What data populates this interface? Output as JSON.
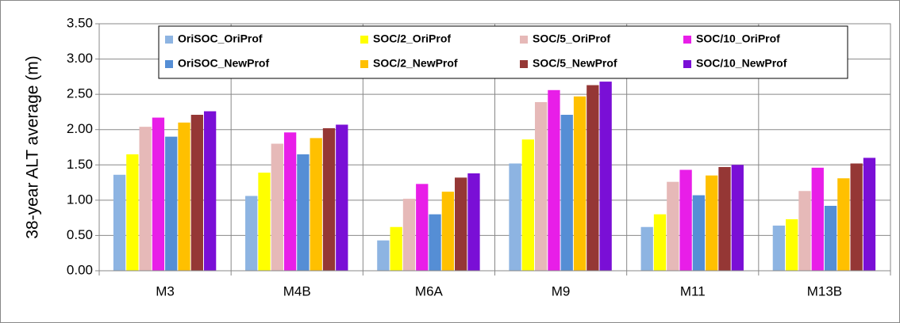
{
  "chart_data": {
    "type": "bar",
    "ylabel": "38-year ALT average (m)",
    "categories": [
      "M3",
      "M4B",
      "M6A",
      "M9",
      "M11",
      "M13B"
    ],
    "series": [
      {
        "name": "OriSOC_OriProf",
        "color": "#8db4e2",
        "values": [
          1.36,
          1.06,
          0.43,
          1.52,
          0.62,
          0.64
        ]
      },
      {
        "name": "SOC/2_OriProf",
        "color": "#ffff00",
        "values": [
          1.65,
          1.39,
          0.62,
          1.86,
          0.8,
          0.73
        ]
      },
      {
        "name": "SOC/5_OriProf",
        "color": "#e6b9b8",
        "values": [
          2.04,
          1.8,
          1.02,
          2.39,
          1.26,
          1.13
        ]
      },
      {
        "name": "SOC/10_OriProf",
        "color": "#e81ee8",
        "values": [
          2.17,
          1.96,
          1.23,
          2.56,
          1.43,
          1.46
        ]
      },
      {
        "name": "OriSOC_NewProf",
        "color": "#558ed5",
        "values": [
          1.9,
          1.65,
          0.8,
          2.21,
          1.07,
          0.92
        ]
      },
      {
        "name": "SOC/2_NewProf",
        "color": "#ffc000",
        "values": [
          2.1,
          1.88,
          1.12,
          2.47,
          1.35,
          1.31
        ]
      },
      {
        "name": "SOC/5_NewProf",
        "color": "#953735",
        "values": [
          2.21,
          2.02,
          1.32,
          2.63,
          1.47,
          1.52
        ]
      },
      {
        "name": "SOC/10_NewProf",
        "color": "#7a0fd6",
        "values": [
          2.26,
          2.07,
          1.38,
          2.68,
          1.5,
          1.6
        ]
      }
    ],
    "ylim": [
      0,
      3.5
    ],
    "yticks": [
      {
        "value": 0,
        "label": "0.00"
      },
      {
        "value": 0.5,
        "label": "0.50"
      },
      {
        "value": 1,
        "label": "1.00"
      },
      {
        "value": 1.5,
        "label": "1.50"
      },
      {
        "value": 2,
        "label": "2.00"
      },
      {
        "value": 2.5,
        "label": "2.50"
      },
      {
        "value": 3,
        "label": "3.00"
      },
      {
        "value": 3.5,
        "label": "3.50"
      }
    ],
    "grid": true,
    "legend": "top"
  }
}
